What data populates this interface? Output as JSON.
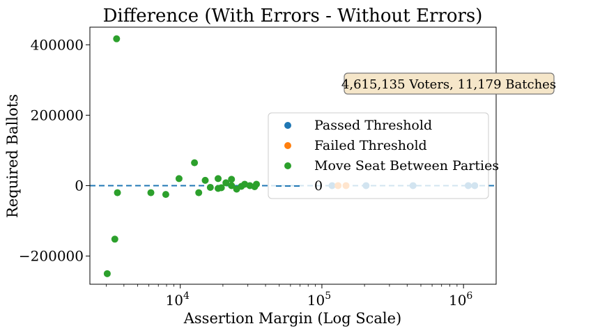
{
  "chart_data": {
    "type": "scatter",
    "title": "Difference (With Errors - Without Errors)",
    "xlabel": "Assertion Margin (Log Scale)",
    "ylabel": "Required Ballots",
    "x_scale": "log",
    "xlim": [
      2300,
      1700000
    ],
    "ylim": [
      -280000,
      450000
    ],
    "x_ticks": [
      {
        "value": 10000,
        "base": "10",
        "exp": "4"
      },
      {
        "value": 100000,
        "base": "10",
        "exp": "5"
      },
      {
        "value": 1000000,
        "base": "10",
        "exp": "6"
      }
    ],
    "y_ticks": [
      {
        "value": 400000,
        "label": "400000"
      },
      {
        "value": 200000,
        "label": "200000"
      },
      {
        "value": 0,
        "label": "0"
      },
      {
        "value": -200000,
        "label": "−200000"
      }
    ],
    "grid": false,
    "legend_placement": "center-right",
    "annotation": "4,615,135 Voters, 11,179 Batches",
    "reference_line": {
      "y": 0,
      "label": "0",
      "color": "#1f77b4"
    },
    "series": [
      {
        "name": "Passed Threshold",
        "color": "#1f77b4",
        "points": [
          {
            "x": 118000,
            "y": 0
          },
          {
            "x": 205000,
            "y": 0
          },
          {
            "x": 440000,
            "y": 0
          },
          {
            "x": 1080000,
            "y": 0
          },
          {
            "x": 1200000,
            "y": 0
          }
        ]
      },
      {
        "name": "Failed Threshold",
        "color": "#ff7f0e",
        "points": [
          {
            "x": 130000,
            "y": 0
          },
          {
            "x": 148000,
            "y": 0
          }
        ]
      },
      {
        "name": "Move Seat Between Parties",
        "color": "#2ca02c",
        "points": [
          {
            "x": 3050,
            "y": -250000
          },
          {
            "x": 3450,
            "y": -152000
          },
          {
            "x": 3550,
            "y": 417000
          },
          {
            "x": 3600,
            "y": -20000
          },
          {
            "x": 6200,
            "y": -20000
          },
          {
            "x": 7900,
            "y": -25000
          },
          {
            "x": 9800,
            "y": 20000
          },
          {
            "x": 12600,
            "y": 65000
          },
          {
            "x": 13500,
            "y": -20000
          },
          {
            "x": 15000,
            "y": 15000
          },
          {
            "x": 16300,
            "y": -5000
          },
          {
            "x": 18500,
            "y": 20000
          },
          {
            "x": 18500,
            "y": -8000
          },
          {
            "x": 19500,
            "y": -6000
          },
          {
            "x": 21000,
            "y": 8000
          },
          {
            "x": 23000,
            "y": 18000
          },
          {
            "x": 23000,
            "y": 0
          },
          {
            "x": 25000,
            "y": -10000
          },
          {
            "x": 27000,
            "y": -2000
          },
          {
            "x": 28500,
            "y": 4000
          },
          {
            "x": 31000,
            "y": 0
          },
          {
            "x": 33500,
            "y": -3000
          },
          {
            "x": 34500,
            "y": 4000
          }
        ]
      }
    ]
  }
}
